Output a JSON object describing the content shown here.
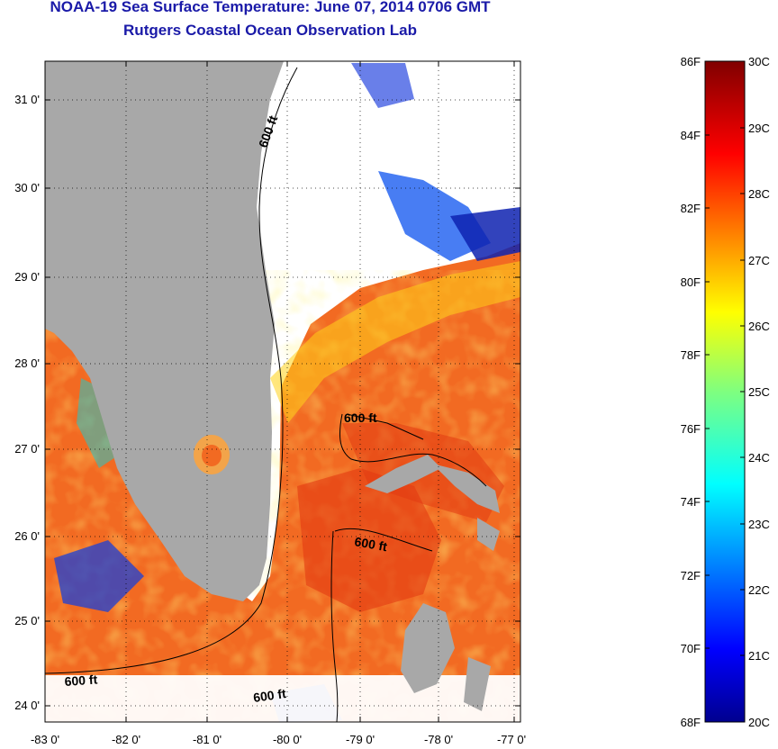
{
  "title": {
    "line1": "NOAA-19 Sea Surface Temperature:  June 07, 2014 0706 GMT",
    "line2": "Rutgers Coastal Ocean Observation Lab"
  },
  "map": {
    "lat_ticks": [
      "31 0'",
      "30 0'",
      "29 0'",
      "28 0'",
      "27 0'",
      "26 0'",
      "25 0'",
      "24 0'"
    ],
    "lon_ticks": [
      "-83 0'",
      "-82 0'",
      "-81 0'",
      "-80 0'",
      "-79 0'",
      "-78 0'",
      "-77 0'"
    ],
    "contour_labels": [
      "600 ft",
      "600 ft",
      "600 ft",
      "600 ft",
      "600 ft"
    ],
    "colors": {
      "land": "#a8a8a8",
      "cloud": "#ffffff",
      "warm_sea": "#f26a22"
    }
  },
  "colorbar": {
    "f_labels": [
      "86F",
      "84F",
      "82F",
      "80F",
      "78F",
      "76F",
      "74F",
      "72F",
      "70F",
      "68F"
    ],
    "c_labels": [
      "30C",
      "29C",
      "28C",
      "27C",
      "26C",
      "25C",
      "24C",
      "23C",
      "22C",
      "21C",
      "20C"
    ]
  }
}
